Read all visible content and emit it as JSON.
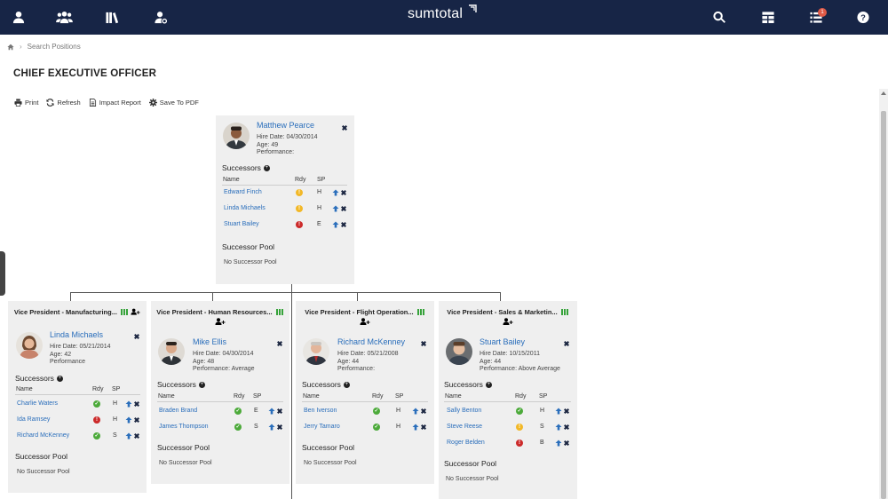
{
  "app": {
    "brand": "sumtotal",
    "notification_count": "1",
    "icons": [
      "user-icon",
      "team-icon",
      "library-icon",
      "user-settings-icon",
      "search-icon",
      "dashboard-icon",
      "tasks-icon",
      "help-icon"
    ]
  },
  "breadcrumb": {
    "home_icon": "home-icon",
    "item": "Search Positions"
  },
  "page_title": "CHIEF EXECUTIVE OFFICER",
  "toolbar": {
    "print": "Print",
    "refresh": "Refresh",
    "impact_report": "Impact Report",
    "save_pdf": "Save To PDF"
  },
  "table_headers": {
    "name": "Name",
    "rdy": "Rdy",
    "sp": "SP"
  },
  "labels": {
    "successors": "Successors",
    "successor_pool": "Successor Pool"
  },
  "top": {
    "name": "Matthew Pearce",
    "hire": "Hire Date: 04/30/2014",
    "age": "Age: 49",
    "perf": "Performance:",
    "successors": [
      {
        "name": "Edward Finch",
        "rdy": "yellow",
        "sp": "H"
      },
      {
        "name": "Linda Michaels",
        "rdy": "yellow",
        "sp": "H"
      },
      {
        "name": "Stuart Bailey",
        "rdy": "red",
        "sp": "E"
      }
    ],
    "pool": "No Successor Pool"
  },
  "vps": [
    {
      "role": "Vice President - Manufacturing...",
      "name": "Linda Michaels",
      "hire": "Hire Date: 05/21/2014",
      "age": "Age: 42",
      "perf": "Performance",
      "successors": [
        {
          "name": "Charlie Waters",
          "rdy": "green",
          "sp": "H"
        },
        {
          "name": "Ida Ramsey",
          "rdy": "red",
          "sp": "H"
        },
        {
          "name": "Richard McKenney",
          "rdy": "green",
          "sp": "S"
        }
      ],
      "pool": "No Successor Pool"
    },
    {
      "role": "Vice President - Human Resources...",
      "name": "Mike Ellis",
      "hire": "Hire Date: 04/30/2014",
      "age": "Age: 48",
      "perf": "Performance: Average",
      "successors": [
        {
          "name": "Braden Brand",
          "rdy": "green",
          "sp": "E"
        },
        {
          "name": "James Thompson",
          "rdy": "green",
          "sp": "S"
        }
      ],
      "pool": "No Successor Pool"
    },
    {
      "role": "Vice President - Flight Operation...",
      "name": "Richard McKenney",
      "hire": "Hire Date: 05/21/2008",
      "age": "Age: 44",
      "perf": "Performance:",
      "successors": [
        {
          "name": "Ben Iverson",
          "rdy": "green",
          "sp": "H"
        },
        {
          "name": "Jerry Tamaro",
          "rdy": "green",
          "sp": "H"
        }
      ],
      "pool": "No Successor Pool"
    },
    {
      "role": "Vice President - Sales & Marketin...",
      "name": "Stuart Bailey",
      "hire": "Hire Date: 10/15/2011",
      "age": "Age: 44",
      "perf": "Performance: Above Average",
      "successors": [
        {
          "name": "Sally Benton",
          "rdy": "green",
          "sp": "H"
        },
        {
          "name": "Steve Reese",
          "rdy": "yellow",
          "sp": "S"
        },
        {
          "name": "Roger Belden",
          "rdy": "red",
          "sp": "B"
        }
      ],
      "pool": "No Successor Pool"
    }
  ],
  "colors": {
    "nav": "#172546",
    "link": "#2a6ebb",
    "ready_green": "#4caa3a",
    "ready_yellow": "#f2b827",
    "ready_red": "#cc2a2a"
  }
}
